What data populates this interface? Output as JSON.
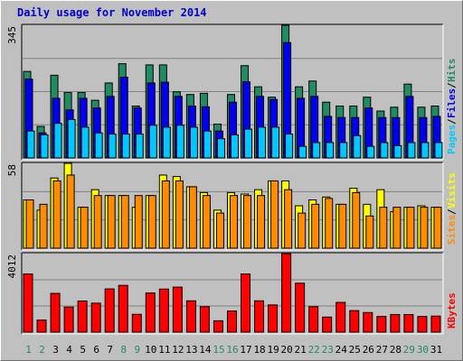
{
  "title": "Daily usage for November 2014",
  "colors": {
    "background": "#c0c0c0",
    "hits": "#218b62",
    "files": "#0000ee",
    "pages": "#00c8ff",
    "visits": "#ffff00",
    "sites": "#ff8c00",
    "kbytes": "#ff0000",
    "weekday_label": "#000000",
    "weekend_label": "#218b62"
  },
  "chart_data": [
    {
      "type": "bar",
      "panel": "top",
      "x": [
        "1",
        "2",
        "3",
        "4",
        "5",
        "6",
        "7",
        "8",
        "9",
        "10",
        "11",
        "12",
        "13",
        "14",
        "15",
        "16",
        "17",
        "18",
        "19",
        "20",
        "21",
        "22",
        "23",
        "24",
        "25",
        "26",
        "27",
        "28",
        "29",
        "30",
        "31"
      ],
      "ymax_label": "345",
      "ylim": [
        0,
        345
      ],
      "grid": true,
      "legend": "right",
      "series": [
        {
          "name": "Hits",
          "values": [
            225,
            82,
            215,
            170,
            170,
            150,
            195,
            245,
            135,
            242,
            242,
            172,
            165,
            168,
            88,
            165,
            240,
            185,
            158,
            345,
            185,
            200,
            145,
            135,
            135,
            158,
            122,
            132,
            192,
            132,
            135
          ]
        },
        {
          "name": "Files",
          "values": [
            205,
            65,
            155,
            125,
            155,
            130,
            160,
            210,
            130,
            195,
            197,
            160,
            135,
            133,
            70,
            145,
            198,
            160,
            152,
            300,
            155,
            160,
            108,
            105,
            105,
            130,
            105,
            105,
            160,
            105,
            108
          ]
        },
        {
          "name": "Pages",
          "values": [
            70,
            60,
            90,
            100,
            80,
            65,
            62,
            62,
            62,
            85,
            80,
            85,
            80,
            70,
            50,
            60,
            75,
            80,
            80,
            62,
            30,
            40,
            40,
            40,
            58,
            30,
            40,
            32,
            40,
            40,
            40
          ]
        }
      ],
      "right_labels": [
        "Pages",
        "Files",
        "Hits"
      ]
    },
    {
      "type": "bar",
      "panel": "middle",
      "x": [
        "1",
        "2",
        "3",
        "4",
        "5",
        "6",
        "7",
        "8",
        "9",
        "10",
        "11",
        "12",
        "13",
        "14",
        "15",
        "16",
        "17",
        "18",
        "19",
        "20",
        "21",
        "22",
        "23",
        "24",
        "25",
        "26",
        "27",
        "28",
        "29",
        "30",
        "31"
      ],
      "ymax_label": "58",
      "ylim": [
        0,
        58
      ],
      "grid": true,
      "series": [
        {
          "name": "Visits",
          "values": [
            33,
            26,
            48,
            58,
            28,
            40,
            36,
            36,
            28,
            36,
            50,
            49,
            42,
            38,
            26,
            38,
            37,
            40,
            46,
            46,
            29,
            33,
            35,
            30,
            41,
            30,
            40,
            25,
            28,
            29,
            28
          ]
        },
        {
          "name": "Sites",
          "values": [
            33,
            30,
            46,
            50,
            28,
            36,
            36,
            36,
            36,
            36,
            46,
            46,
            42,
            36,
            24,
            36,
            36,
            36,
            46,
            40,
            24,
            30,
            34,
            30,
            38,
            22,
            28,
            28,
            28,
            28,
            28
          ]
        }
      ],
      "right_labels": [
        "Sites",
        "Visits"
      ]
    },
    {
      "type": "bar",
      "panel": "bottom",
      "x": [
        "1",
        "2",
        "3",
        "4",
        "5",
        "6",
        "7",
        "8",
        "9",
        "10",
        "11",
        "12",
        "13",
        "14",
        "15",
        "16",
        "17",
        "18",
        "19",
        "20",
        "21",
        "22",
        "23",
        "24",
        "25",
        "26",
        "27",
        "28",
        "29",
        "30",
        "31"
      ],
      "ymax_label": "4012",
      "ylim": [
        0,
        4012
      ],
      "grid": true,
      "series": [
        {
          "name": "KBytes",
          "values": [
            2970,
            615,
            1980,
            1280,
            1590,
            1480,
            2210,
            2390,
            910,
            2000,
            2200,
            2300,
            1600,
            1300,
            580,
            1080,
            2970,
            1600,
            1390,
            4012,
            2500,
            1300,
            770,
            1520,
            1100,
            1000,
            800,
            900,
            900,
            800,
            820
          ]
        }
      ],
      "right_labels": [
        "KBytes"
      ]
    }
  ],
  "weekend_days": [
    "1",
    "2",
    "8",
    "9",
    "15",
    "16",
    "22",
    "23",
    "29",
    "30"
  ]
}
